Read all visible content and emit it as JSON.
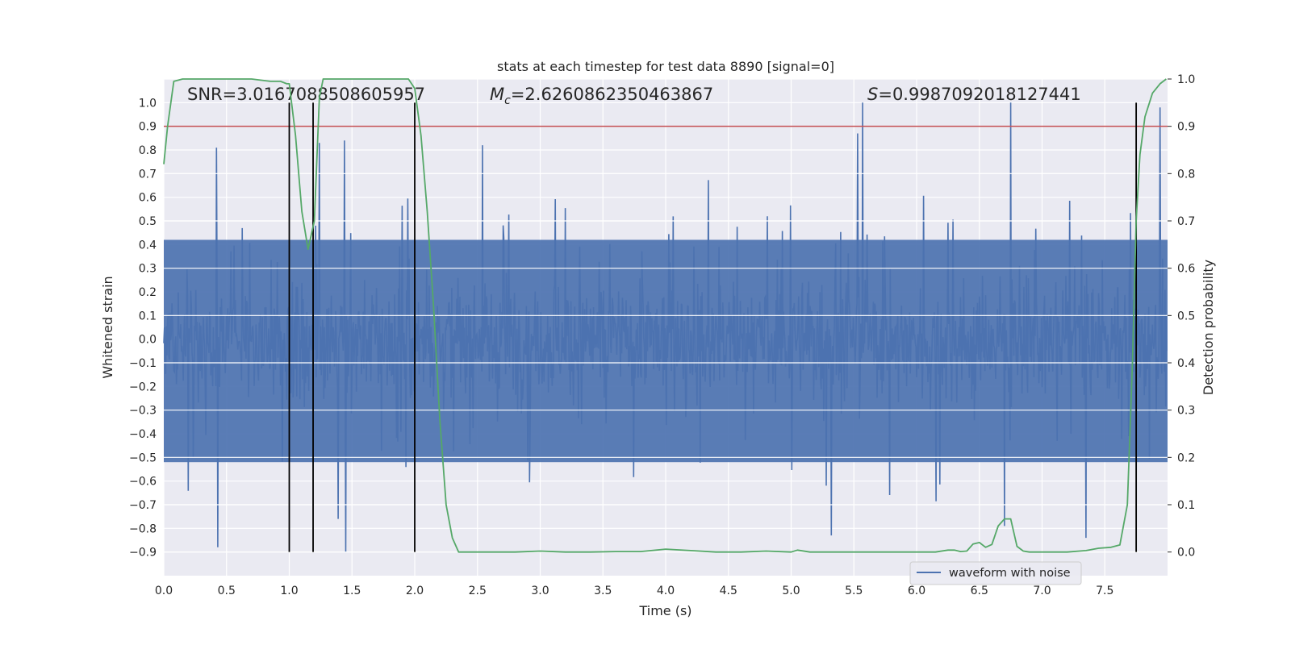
{
  "chart_data": {
    "type": "line",
    "title": "stats at each timestep for test data 8890 [signal=0]",
    "xlabel": "Time (s)",
    "ylabel": "Whitened strain",
    "y2label": "Detection probability",
    "xlim": [
      0,
      8
    ],
    "ylim": [
      -1.0,
      1.1
    ],
    "y2lim": [
      -0.05,
      1.0
    ],
    "xticks": [
      "0.0",
      "0.5",
      "1.0",
      "1.5",
      "2.0",
      "2.5",
      "3.0",
      "3.5",
      "4.0",
      "4.5",
      "5.0",
      "5.5",
      "6.0",
      "6.5",
      "7.0",
      "7.5"
    ],
    "yticks": [
      "-0.9",
      "-0.8",
      "-0.7",
      "-0.6",
      "-0.5",
      "-0.4",
      "-0.3",
      "-0.2",
      "-0.1",
      "0.0",
      "0.1",
      "0.2",
      "0.3",
      "0.4",
      "0.5",
      "0.6",
      "0.7",
      "0.8",
      "0.9",
      "1.0"
    ],
    "y2ticks": [
      "0.0",
      "0.1",
      "0.2",
      "0.3",
      "0.4",
      "0.5",
      "0.6",
      "0.7",
      "0.8",
      "0.9",
      "1.0"
    ],
    "grid": true,
    "legend_position": "lower-right",
    "annotations": {
      "snr": "SNR=3.0167088508605957",
      "mc_symbol": "M",
      "mc_subscript": "c",
      "mc_value": "=2.6260862350463867",
      "s_symbol": "S",
      "s_value": "=0.9987092018127441"
    },
    "threshold_line": {
      "axis": "right",
      "value": 0.9,
      "color": "#c44e52"
    },
    "vertical_lines": {
      "x": [
        1.0,
        1.19,
        2.0,
        7.75
      ],
      "color": "#000000"
    },
    "series": [
      {
        "name": "waveform with noise",
        "axis": "left",
        "color": "#4c72b0",
        "type": "noise_waveform",
        "sample_rate_hz": 200,
        "peaks": [
          {
            "x": 0.42,
            "y": 0.81
          },
          {
            "x": 0.43,
            "y": -0.88
          },
          {
            "x": 1.24,
            "y": 0.83
          },
          {
            "x": 1.44,
            "y": 0.84
          },
          {
            "x": 1.45,
            "y": -0.9
          },
          {
            "x": 2.54,
            "y": 0.82
          },
          {
            "x": 5.57,
            "y": 1.0
          },
          {
            "x": 5.53,
            "y": 0.87
          },
          {
            "x": 6.75,
            "y": 1.0
          },
          {
            "x": 7.94,
            "y": 0.98
          },
          {
            "x": 5.32,
            "y": -0.83
          },
          {
            "x": 7.35,
            "y": -0.84
          },
          {
            "x": 6.7,
            "y": -0.79
          },
          {
            "x": 1.39,
            "y": -0.76
          }
        ]
      },
      {
        "name": "",
        "axis": "right",
        "color": "#55a868",
        "x": [
          0.0,
          0.03,
          0.08,
          0.15,
          0.3,
          0.5,
          0.7,
          0.85,
          0.93,
          0.98,
          1.0,
          1.05,
          1.1,
          1.15,
          1.2,
          1.24,
          1.27,
          1.35,
          1.5,
          1.7,
          1.85,
          1.95,
          2.0,
          2.05,
          2.1,
          2.15,
          2.2,
          2.25,
          2.3,
          2.35,
          2.4,
          2.6,
          2.8,
          3.0,
          3.2,
          3.4,
          3.6,
          3.8,
          4.0,
          4.2,
          4.4,
          4.6,
          4.8,
          5.0,
          5.05,
          5.15,
          5.4,
          5.6,
          5.8,
          6.0,
          6.15,
          6.25,
          6.3,
          6.35,
          6.4,
          6.45,
          6.5,
          6.55,
          6.6,
          6.65,
          6.7,
          6.75,
          6.8,
          6.85,
          6.9,
          7.0,
          7.2,
          7.35,
          7.45,
          7.55,
          7.62,
          7.68,
          7.72,
          7.75,
          7.78,
          7.82,
          7.88,
          7.94,
          7.99
        ],
        "y": [
          0.82,
          0.9,
          0.995,
          1.0,
          1.0,
          1.0,
          1.0,
          0.995,
          0.995,
          0.99,
          0.99,
          0.88,
          0.72,
          0.64,
          0.7,
          0.96,
          1.0,
          1.0,
          1.0,
          1.0,
          1.0,
          1.0,
          0.98,
          0.88,
          0.72,
          0.52,
          0.28,
          0.1,
          0.03,
          0.0,
          0.0,
          0.0,
          0.0,
          0.002,
          0.0,
          0.0,
          0.001,
          0.001,
          0.006,
          0.003,
          0.0,
          0.0,
          0.002,
          0.0,
          0.004,
          0.0,
          0.0,
          0.0,
          0.0,
          0.0,
          0.0,
          0.004,
          0.004,
          0.001,
          0.002,
          0.017,
          0.02,
          0.01,
          0.016,
          0.055,
          0.07,
          0.07,
          0.012,
          0.002,
          0.0,
          0.0,
          0.0,
          0.003,
          0.008,
          0.01,
          0.015,
          0.1,
          0.4,
          0.7,
          0.84,
          0.92,
          0.97,
          0.99,
          1.0
        ]
      }
    ]
  }
}
